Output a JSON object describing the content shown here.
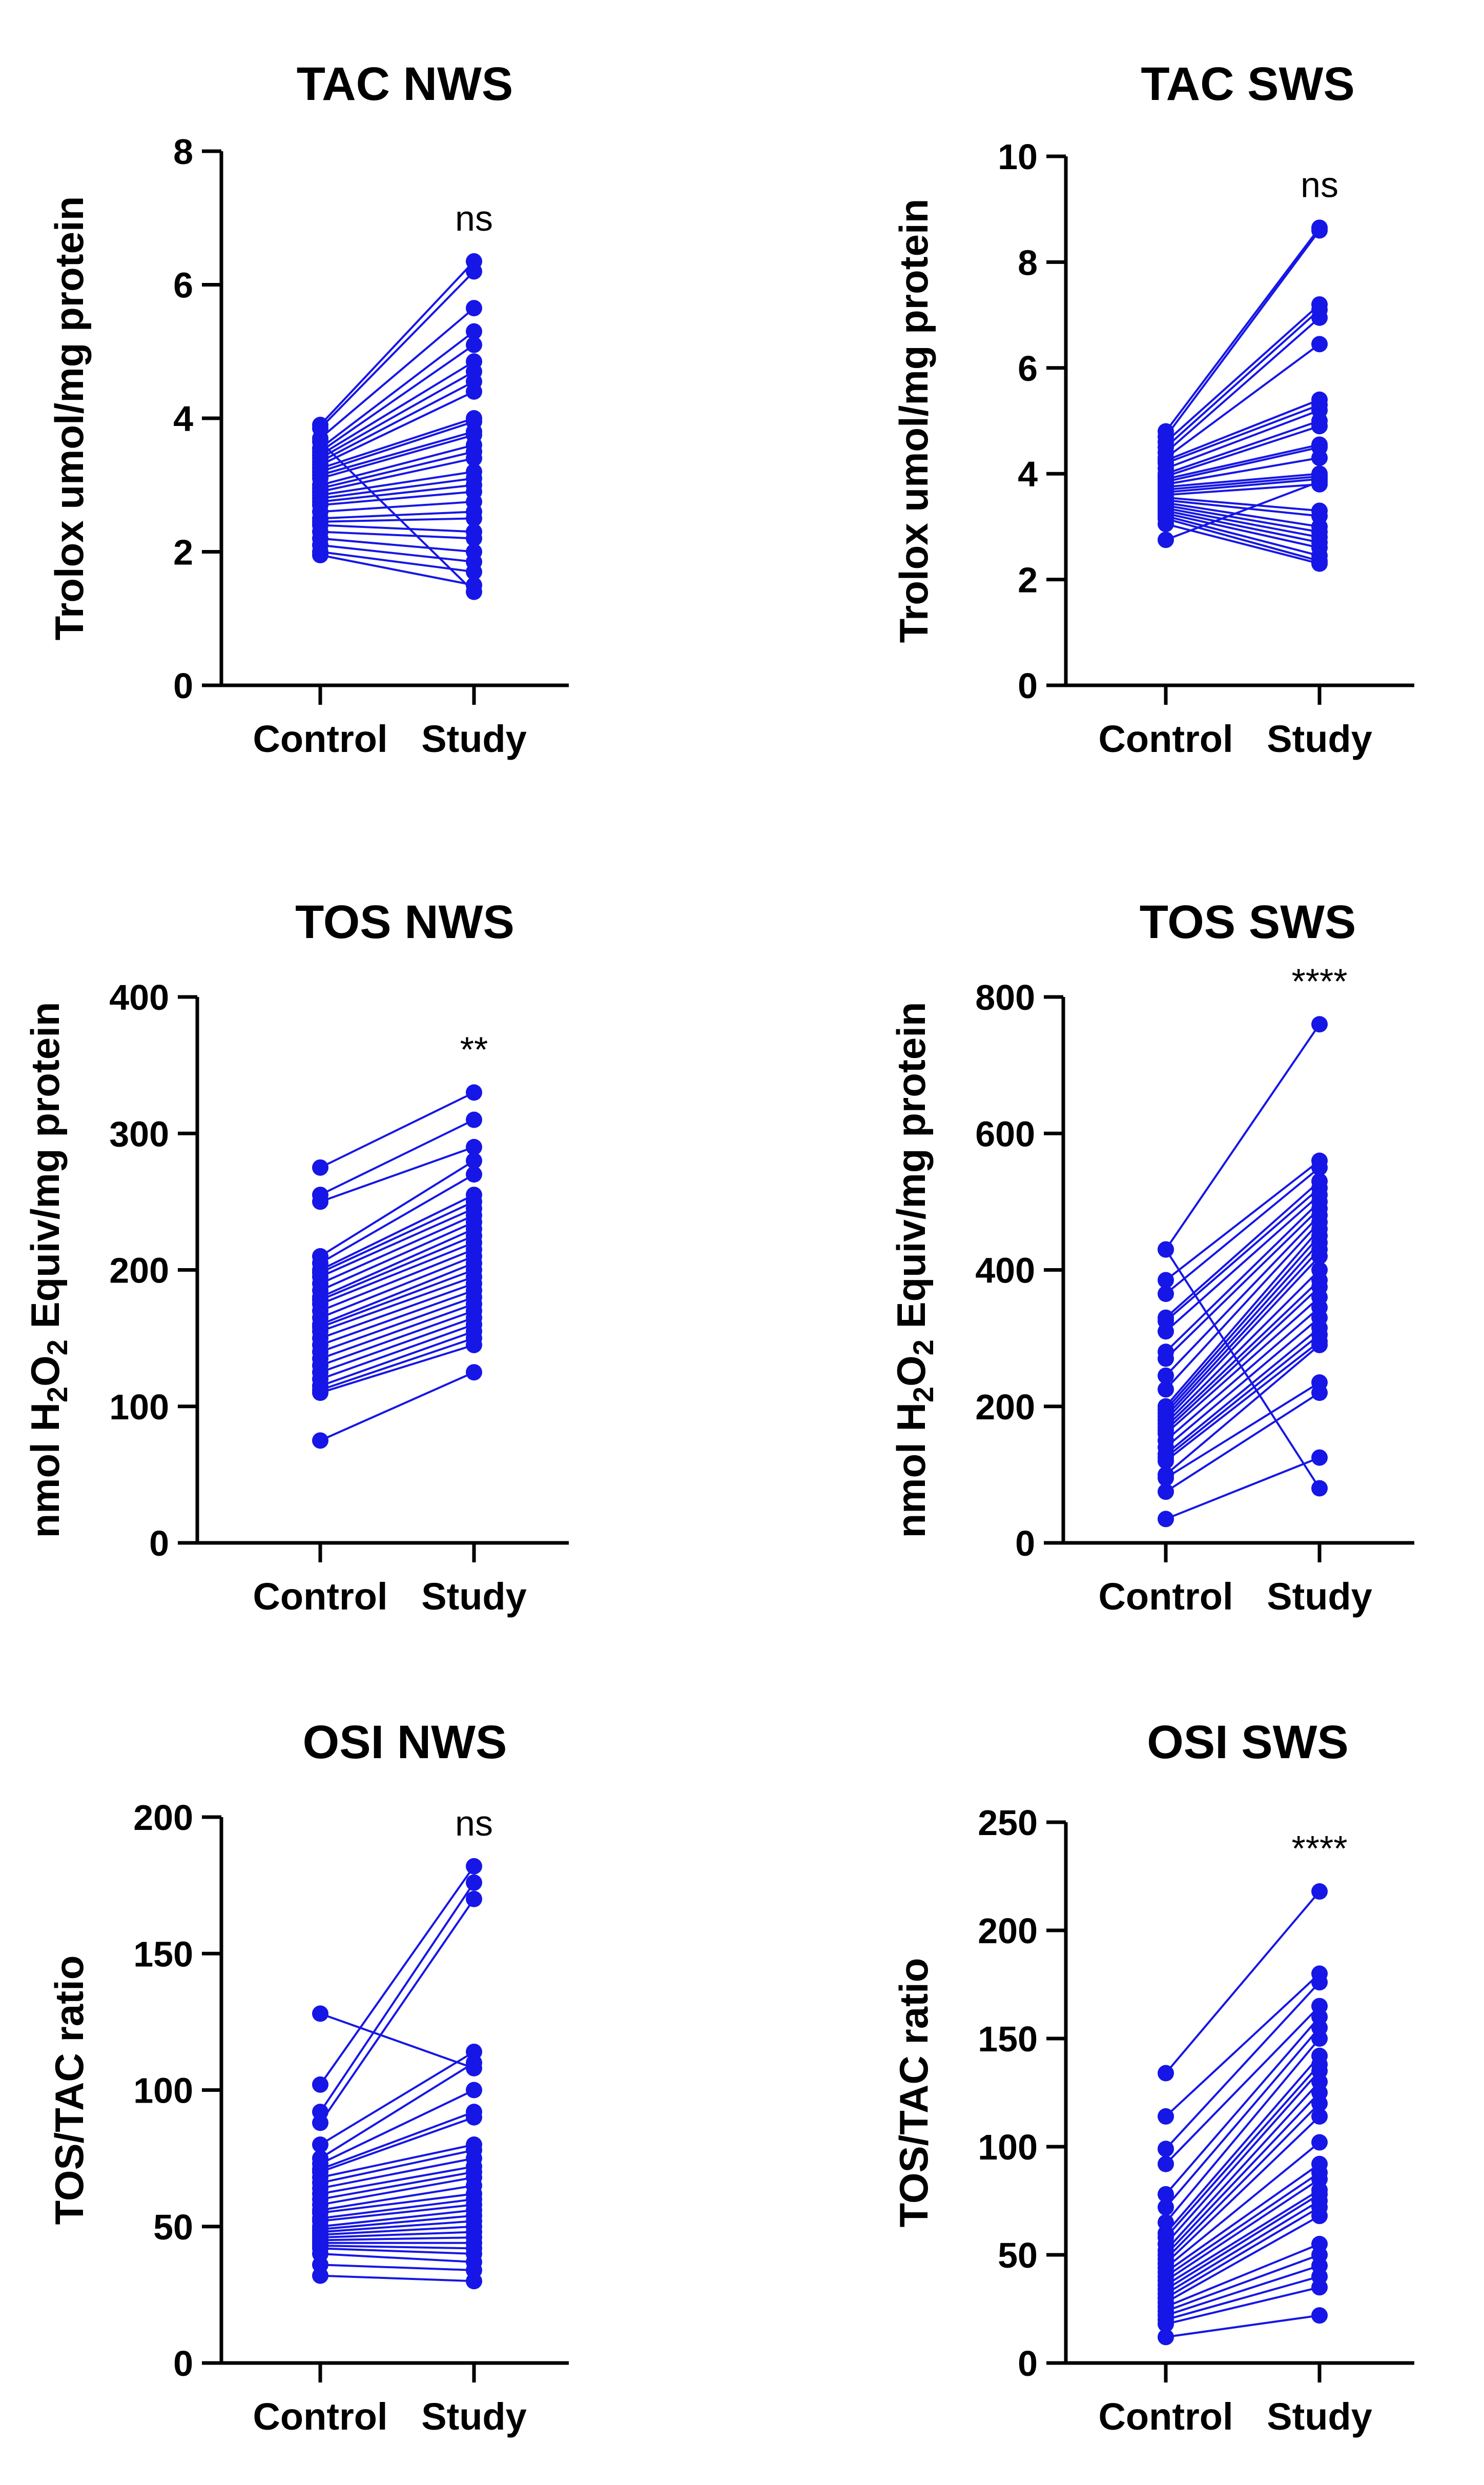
{
  "chart_data": [
    {
      "type": "line",
      "title": "TAC NWS",
      "xlabel": "",
      "ylabel": "Trolox umol/mg protein",
      "categories": [
        "Control",
        "Study"
      ],
      "ylim": [
        0,
        8
      ],
      "yticks": [
        "0",
        "2",
        "4",
        "6",
        "8"
      ],
      "significance": "ns",
      "pairs": [
        [
          3.9,
          6.35
        ],
        [
          3.85,
          6.2
        ],
        [
          3.7,
          5.65
        ],
        [
          3.55,
          5.3
        ],
        [
          3.5,
          5.1
        ],
        [
          3.45,
          4.85
        ],
        [
          3.4,
          4.7
        ],
        [
          3.35,
          4.55
        ],
        [
          3.3,
          4.4
        ],
        [
          3.25,
          4.0
        ],
        [
          3.2,
          3.95
        ],
        [
          3.15,
          3.8
        ],
        [
          3.1,
          3.75
        ],
        [
          3.0,
          3.6
        ],
        [
          2.95,
          3.5
        ],
        [
          2.9,
          3.4
        ],
        [
          2.85,
          3.2
        ],
        [
          2.8,
          3.1
        ],
        [
          2.75,
          3.0
        ],
        [
          2.7,
          2.9
        ],
        [
          2.6,
          2.75
        ],
        [
          2.5,
          2.6
        ],
        [
          2.45,
          2.5
        ],
        [
          2.4,
          2.3
        ],
        [
          2.3,
          2.2
        ],
        [
          2.2,
          2.0
        ],
        [
          2.1,
          1.85
        ],
        [
          2.0,
          1.7
        ],
        [
          1.95,
          1.5
        ],
        [
          3.65,
          1.4
        ]
      ]
    },
    {
      "type": "line",
      "title": "TAC SWS",
      "xlabel": "",
      "ylabel": "Trolox umol/mg protein",
      "categories": [
        "Control",
        "Study"
      ],
      "ylim": [
        0,
        10
      ],
      "yticks": [
        "0",
        "2",
        "4",
        "6",
        "8",
        "10"
      ],
      "significance": "ns",
      "pairs": [
        [
          4.8,
          8.65
        ],
        [
          4.7,
          8.6
        ],
        [
          4.6,
          7.2
        ],
        [
          4.5,
          7.1
        ],
        [
          4.4,
          6.95
        ],
        [
          4.3,
          6.45
        ],
        [
          4.25,
          5.4
        ],
        [
          4.2,
          5.3
        ],
        [
          4.1,
          5.2
        ],
        [
          4.0,
          5.0
        ],
        [
          3.95,
          4.9
        ],
        [
          3.9,
          4.55
        ],
        [
          3.85,
          4.5
        ],
        [
          3.8,
          4.3
        ],
        [
          3.75,
          4.0
        ],
        [
          3.7,
          3.95
        ],
        [
          3.65,
          3.9
        ],
        [
          3.6,
          3.8
        ],
        [
          3.55,
          3.3
        ],
        [
          3.5,
          3.2
        ],
        [
          3.45,
          3.0
        ],
        [
          3.4,
          2.9
        ],
        [
          3.35,
          2.8
        ],
        [
          3.3,
          2.7
        ],
        [
          3.25,
          2.6
        ],
        [
          3.2,
          2.45
        ],
        [
          3.15,
          2.35
        ],
        [
          3.05,
          2.3
        ],
        [
          2.75,
          3.85
        ]
      ]
    },
    {
      "type": "line",
      "title": "TOS NWS",
      "xlabel": "",
      "ylabel": "nmol H2O2 Equiv/mg protein",
      "ylabel_parts": {
        "pre": "nmol H",
        "sub1": "2",
        "mid": "O",
        "sub2": "2",
        "post": " Equiv/mg protein"
      },
      "categories": [
        "Control",
        "Study"
      ],
      "ylim": [
        0,
        400
      ],
      "yticks": [
        "0",
        "100",
        "200",
        "300",
        "400"
      ],
      "significance": "**",
      "pairs": [
        [
          275,
          330
        ],
        [
          255,
          310
        ],
        [
          250,
          290
        ],
        [
          210,
          280
        ],
        [
          205,
          270
        ],
        [
          200,
          255
        ],
        [
          198,
          250
        ],
        [
          195,
          245
        ],
        [
          190,
          240
        ],
        [
          185,
          235
        ],
        [
          180,
          230
        ],
        [
          178,
          225
        ],
        [
          175,
          220
        ],
        [
          170,
          215
        ],
        [
          165,
          210
        ],
        [
          160,
          205
        ],
        [
          158,
          200
        ],
        [
          155,
          195
        ],
        [
          150,
          190
        ],
        [
          145,
          185
        ],
        [
          140,
          180
        ],
        [
          135,
          175
        ],
        [
          130,
          170
        ],
        [
          125,
          165
        ],
        [
          120,
          160
        ],
        [
          115,
          155
        ],
        [
          112,
          150
        ],
        [
          110,
          145
        ],
        [
          75,
          125
        ]
      ]
    },
    {
      "type": "line",
      "title": "TOS SWS",
      "xlabel": "",
      "ylabel": "nmol H2O2 Equiv/mg protein",
      "ylabel_parts": {
        "pre": "nmol H",
        "sub1": "2",
        "mid": "O",
        "sub2": "2",
        "post": " Equiv/mg protein"
      },
      "categories": [
        "Control",
        "Study"
      ],
      "ylim": [
        0,
        800
      ],
      "yticks": [
        "0",
        "200",
        "400",
        "600",
        "800"
      ],
      "significance": "****",
      "pairs": [
        [
          430,
          760
        ],
        [
          385,
          560
        ],
        [
          365,
          550
        ],
        [
          330,
          530
        ],
        [
          325,
          520
        ],
        [
          310,
          510
        ],
        [
          280,
          500
        ],
        [
          270,
          490
        ],
        [
          245,
          480
        ],
        [
          225,
          470
        ],
        [
          200,
          460
        ],
        [
          195,
          450
        ],
        [
          190,
          440
        ],
        [
          185,
          430
        ],
        [
          180,
          420
        ],
        [
          175,
          400
        ],
        [
          170,
          385
        ],
        [
          165,
          375
        ],
        [
          160,
          360
        ],
        [
          150,
          345
        ],
        [
          140,
          330
        ],
        [
          130,
          315
        ],
        [
          125,
          305
        ],
        [
          120,
          295
        ],
        [
          100,
          290
        ],
        [
          95,
          235
        ],
        [
          75,
          220
        ],
        [
          35,
          125
        ],
        [
          430,
          80
        ]
      ]
    },
    {
      "type": "line",
      "title": "OSI NWS",
      "xlabel": "",
      "ylabel": "TOS/TAC ratio",
      "categories": [
        "Control",
        "Study"
      ],
      "ylim": [
        0,
        200
      ],
      "yticks": [
        "0",
        "50",
        "100",
        "150",
        "200"
      ],
      "significance": "ns",
      "pairs": [
        [
          102,
          182
        ],
        [
          92,
          176
        ],
        [
          88,
          170
        ],
        [
          80,
          114
        ],
        [
          75,
          110
        ],
        [
          73,
          100
        ],
        [
          71,
          92
        ],
        [
          70,
          90
        ],
        [
          68,
          80
        ],
        [
          66,
          78
        ],
        [
          64,
          75
        ],
        [
          62,
          72
        ],
        [
          60,
          70
        ],
        [
          58,
          68
        ],
        [
          56,
          65
        ],
        [
          55,
          62
        ],
        [
          53,
          60
        ],
        [
          52,
          58
        ],
        [
          50,
          56
        ],
        [
          49,
          54
        ],
        [
          48,
          52
        ],
        [
          47,
          50
        ],
        [
          46,
          48
        ],
        [
          45,
          46
        ],
        [
          44,
          44
        ],
        [
          43,
          42
        ],
        [
          42,
          40
        ],
        [
          40,
          37
        ],
        [
          36,
          34
        ],
        [
          32,
          30
        ],
        [
          128,
          108
        ]
      ]
    },
    {
      "type": "line",
      "title": "OSI SWS",
      "xlabel": "",
      "ylabel": "TOS/TAC ratio",
      "categories": [
        "Control",
        "Study"
      ],
      "ylim": [
        0,
        250
      ],
      "yticks": [
        "0",
        "50",
        "100",
        "150",
        "200",
        "250"
      ],
      "significance": "****",
      "pairs": [
        [
          134,
          218
        ],
        [
          114,
          180
        ],
        [
          99,
          176
        ],
        [
          92,
          165
        ],
        [
          78,
          160
        ],
        [
          72,
          155
        ],
        [
          65,
          150
        ],
        [
          60,
          142
        ],
        [
          58,
          138
        ],
        [
          55,
          135
        ],
        [
          52,
          130
        ],
        [
          50,
          125
        ],
        [
          48,
          120
        ],
        [
          46,
          114
        ],
        [
          44,
          102
        ],
        [
          42,
          92
        ],
        [
          40,
          88
        ],
        [
          38,
          85
        ],
        [
          36,
          80
        ],
        [
          34,
          78
        ],
        [
          32,
          75
        ],
        [
          30,
          72
        ],
        [
          28,
          68
        ],
        [
          26,
          55
        ],
        [
          24,
          50
        ],
        [
          22,
          45
        ],
        [
          20,
          40
        ],
        [
          18,
          35
        ],
        [
          12,
          22
        ]
      ]
    }
  ]
}
